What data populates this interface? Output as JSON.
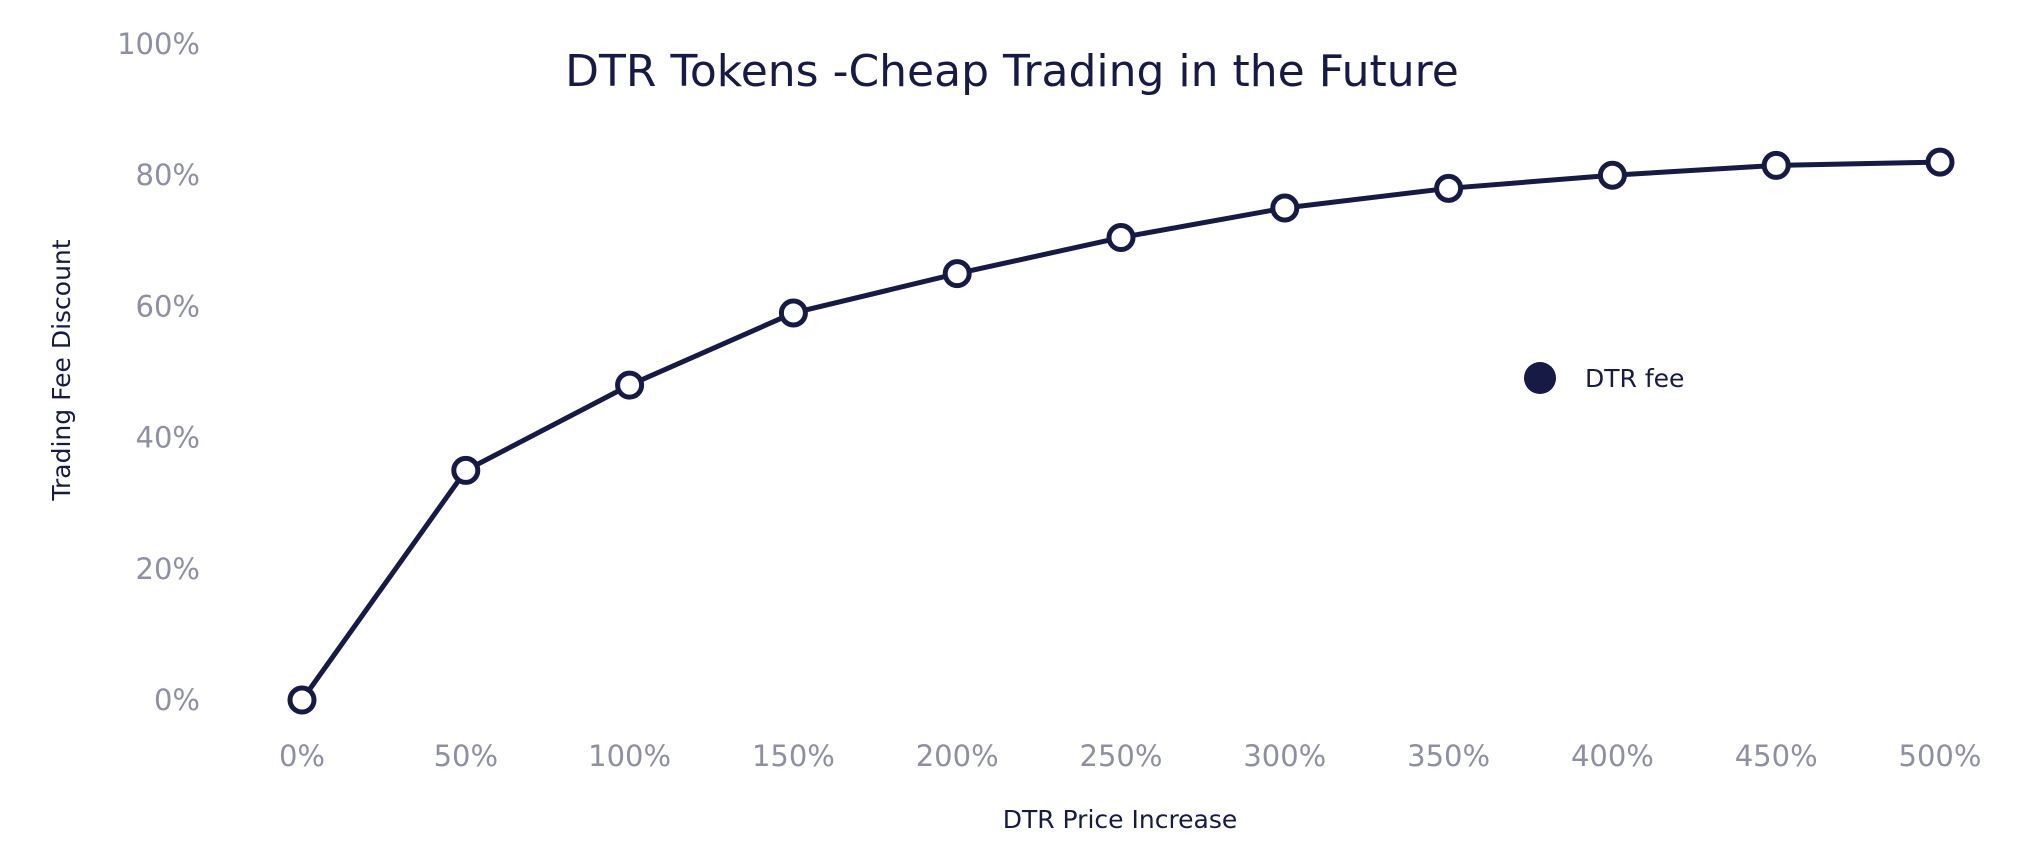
{
  "chart_data": {
    "type": "line",
    "title": "DTR Tokens -Cheap Trading in the Future",
    "xlabel": "DTR Price Increase",
    "ylabel": "Trading Fee Discount",
    "x": [
      0,
      50,
      100,
      150,
      200,
      250,
      300,
      350,
      400,
      450,
      500
    ],
    "x_tick_labels": [
      "0%",
      "50%",
      "100%",
      "150%",
      "200%",
      "250%",
      "300%",
      "350%",
      "400%",
      "450%",
      "500%"
    ],
    "y_tick_values": [
      0,
      20,
      40,
      60,
      80,
      100
    ],
    "y_tick_labels": [
      "0%",
      "20%",
      "40%",
      "60%",
      "80%",
      "100%"
    ],
    "xlim": [
      0,
      500
    ],
    "ylim": [
      0,
      100
    ],
    "grid": false,
    "legend_position": "center-right",
    "series": [
      {
        "name": "DTR fee",
        "color": "#161a44",
        "marker": "hollow-circle",
        "values": [
          0,
          35,
          48,
          59,
          65,
          70.5,
          75,
          78,
          80,
          81.5,
          82
        ]
      }
    ]
  }
}
